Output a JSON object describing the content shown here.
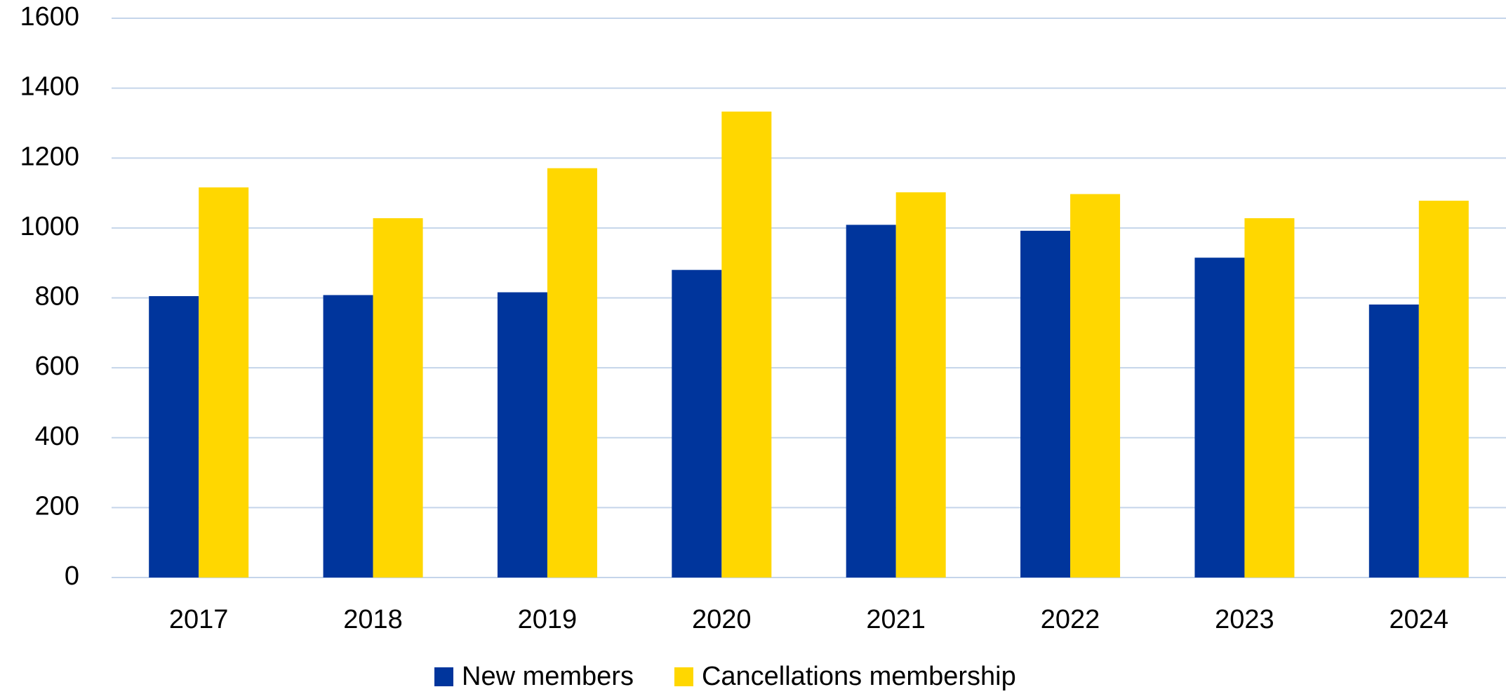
{
  "chart_data": {
    "type": "bar",
    "categories": [
      "2017",
      "2018",
      "2019",
      "2020",
      "2021",
      "2022",
      "2023",
      "2024"
    ],
    "series": [
      {
        "name": "New members",
        "color": "#00359c",
        "values": [
          805,
          808,
          816,
          880,
          1009,
          992,
          915,
          781
        ]
      },
      {
        "name": "Cancellations membership",
        "color": "#ffd700",
        "values": [
          1116,
          1028,
          1171,
          1333,
          1102,
          1097,
          1028,
          1078
        ]
      }
    ],
    "ylim": [
      0,
      1600
    ],
    "yticks": [
      0,
      200,
      400,
      600,
      800,
      1000,
      1200,
      1400,
      1600
    ],
    "grid": true,
    "legend": "bottom"
  }
}
